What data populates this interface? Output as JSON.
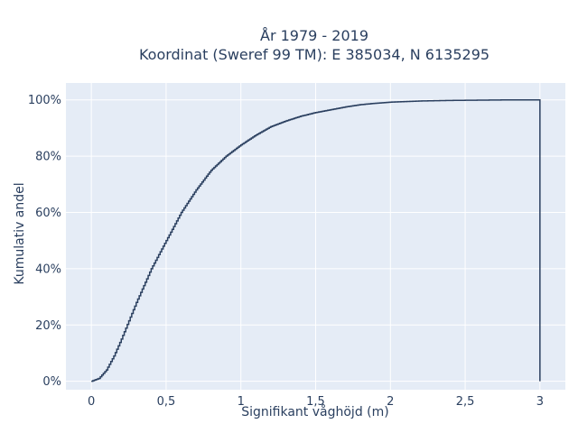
{
  "chart_data": {
    "type": "line",
    "line_shape": "step (empirical cumulative distribution)",
    "title_line1": "År 1979 - 2019",
    "title_line2": "Koordinat (Sweref 99 TM): E 385034, N 6135295",
    "xlabel": "Signifikant våghöjd (m)",
    "ylabel": "Kumulativ andel",
    "xlim": [
      -0.17,
      3.17
    ],
    "ylim": [
      -0.03,
      1.06
    ],
    "x_ticks": [
      0,
      0.5,
      1,
      1.5,
      2,
      2.5,
      3
    ],
    "x_tick_labels": [
      "0",
      "0,5",
      "1",
      "1,5",
      "2",
      "2,5",
      "3"
    ],
    "y_ticks": [
      0,
      0.2,
      0.4,
      0.6,
      0.8,
      1.0
    ],
    "y_tick_labels": [
      "0%",
      "20%",
      "40%",
      "60%",
      "80%",
      "100%"
    ],
    "grid": true,
    "plot_background": "#e5ecf6",
    "line_color": "#2a3f5f",
    "series": [
      {
        "x": [
          0.0,
          0.05,
          0.1,
          0.15,
          0.2,
          0.3,
          0.4,
          0.5,
          0.6,
          0.7,
          0.8,
          0.9,
          1.0,
          1.1,
          1.2,
          1.3,
          1.4,
          1.5,
          1.6,
          1.7,
          1.8,
          1.9,
          2.0,
          2.2,
          2.4,
          2.6,
          2.8,
          3.0,
          3.0
        ],
        "y": [
          0.0,
          0.01,
          0.04,
          0.09,
          0.15,
          0.28,
          0.4,
          0.5,
          0.6,
          0.68,
          0.75,
          0.8,
          0.84,
          0.875,
          0.905,
          0.925,
          0.942,
          0.955,
          0.965,
          0.975,
          0.983,
          0.988,
          0.992,
          0.996,
          0.998,
          0.999,
          1.0,
          1.0,
          0.0
        ]
      }
    ]
  }
}
